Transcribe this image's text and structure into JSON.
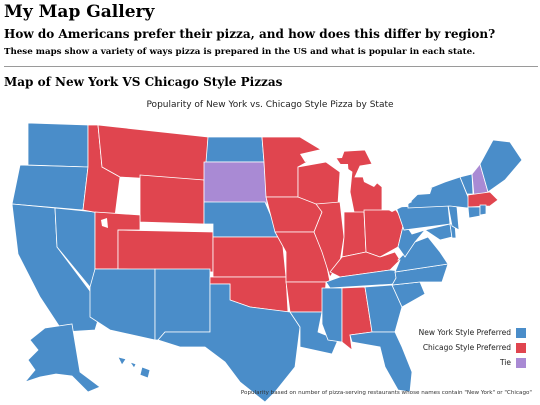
{
  "site_title": "My Map Gallery",
  "question": "How do Americans prefer their pizza, and how does this differ by region?",
  "subtext": "These maps show a variety of ways pizza is prepared in the US and what is popular in each state.",
  "section_title": "Map of New York VS Chicago Style Pizzas",
  "map": {
    "title": "Popularity of New York vs. Chicago Style Pizza by State",
    "legend": [
      {
        "label": "New York Style Preferred",
        "color": "#4a8dc9"
      },
      {
        "label": "Chicago Style Preferred",
        "color": "#e0454f"
      },
      {
        "label": "Tie",
        "color": "#a98ad4"
      }
    ],
    "footnote": "Popularity based on number of pizza-serving restaurants whose names contain \"New York\" or \"Chicago\"",
    "preferences": {
      "chicago": [
        "Montana",
        "Idaho",
        "Wyoming",
        "Utah",
        "Colorado",
        "Minnesota",
        "Iowa",
        "Wisconsin",
        "Illinois",
        "Michigan",
        "Indiana",
        "Ohio",
        "Kansas",
        "Missouri",
        "Oklahoma",
        "Arkansas",
        "Kentucky",
        "Alabama",
        "Massachusetts"
      ],
      "tie": [
        "South Dakota",
        "New Hampshire"
      ],
      "new_york": [
        "Washington",
        "Oregon",
        "California",
        "Nevada",
        "Arizona",
        "New Mexico",
        "Texas",
        "North Dakota",
        "Nebraska",
        "Louisiana",
        "Mississippi",
        "Tennessee",
        "Georgia",
        "Florida",
        "South Carolina",
        "North Carolina",
        "Virginia",
        "West Virginia",
        "Pennsylvania",
        "New York",
        "Vermont",
        "Maine",
        "Connecticut",
        "Rhode Island",
        "New Jersey",
        "Delaware",
        "Maryland",
        "Alaska",
        "Hawaii"
      ]
    }
  }
}
